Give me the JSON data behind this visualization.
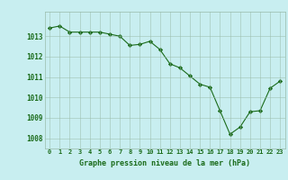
{
  "x": [
    0,
    1,
    2,
    3,
    4,
    5,
    6,
    7,
    8,
    9,
    10,
    11,
    12,
    13,
    14,
    15,
    16,
    17,
    18,
    19,
    20,
    21,
    22,
    23
  ],
  "y": [
    1013.4,
    1013.5,
    1013.2,
    1013.2,
    1013.2,
    1013.2,
    1013.1,
    1013.0,
    1012.55,
    1012.6,
    1012.75,
    1012.35,
    1011.65,
    1011.45,
    1011.05,
    1010.65,
    1010.5,
    1009.35,
    1008.2,
    1008.55,
    1009.3,
    1009.35,
    1010.45,
    1010.8
  ],
  "line_color": "#1a6b1a",
  "marker": "D",
  "marker_size": 2.2,
  "bg_color": "#c8eef0",
  "grid_color": "#99bbaa",
  "xlabel": "Graphe pression niveau de la mer (hPa)",
  "xlabel_color": "#1a6b1a",
  "tick_color": "#1a6b1a",
  "ylim": [
    1007.5,
    1014.2
  ],
  "yticks": [
    1008,
    1009,
    1010,
    1011,
    1012,
    1013
  ],
  "xtick_labels": [
    "0",
    "1",
    "2",
    "3",
    "4",
    "5",
    "6",
    "7",
    "8",
    "9",
    "10",
    "11",
    "12",
    "13",
    "14",
    "15",
    "16",
    "17",
    "18",
    "19",
    "20",
    "21",
    "22",
    "23"
  ]
}
